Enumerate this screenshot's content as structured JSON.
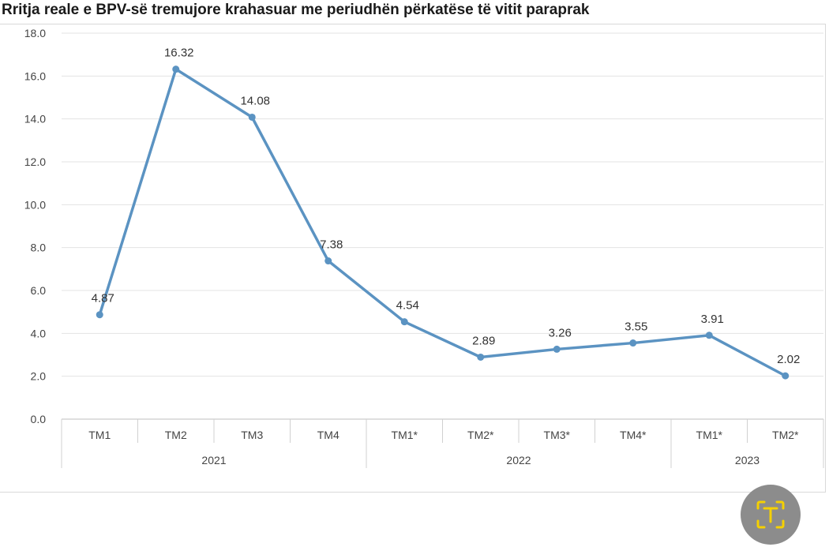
{
  "chart_data": {
    "type": "line",
    "title": "Rritja reale e BPV-së tremujore krahasuar me periudhën përkatëse të vitit paraprak",
    "categories": [
      "TM1",
      "TM2",
      "TM3",
      "TM4",
      "TM1*",
      "TM2*",
      "TM3*",
      "TM4*",
      "TM1*",
      "TM2*"
    ],
    "groups": [
      {
        "label": "2021",
        "count": 4
      },
      {
        "label": "2022",
        "count": 4
      },
      {
        "label": "2023",
        "count": 2
      }
    ],
    "series": [
      {
        "values": [
          4.87,
          16.32,
          14.08,
          7.38,
          4.54,
          2.89,
          3.26,
          3.55,
          3.91,
          2.02
        ],
        "color": "#5b93c2"
      }
    ],
    "data_labels": [
      "4.87",
      "16.32",
      "14.08",
      "7.38",
      "4.54",
      "2.89",
      "3.26",
      "3.55",
      "3.91",
      "2.02"
    ],
    "ylim": [
      0,
      18
    ],
    "yticks": [
      "0.0",
      "2.0",
      "4.0",
      "6.0",
      "8.0",
      "10.0",
      "12.0",
      "14.0",
      "16.0",
      "18.0"
    ],
    "grid": true,
    "xlabel": "",
    "ylabel": ""
  },
  "overlay": {
    "icon": "text-scan-icon",
    "accent": "#f5d000"
  }
}
